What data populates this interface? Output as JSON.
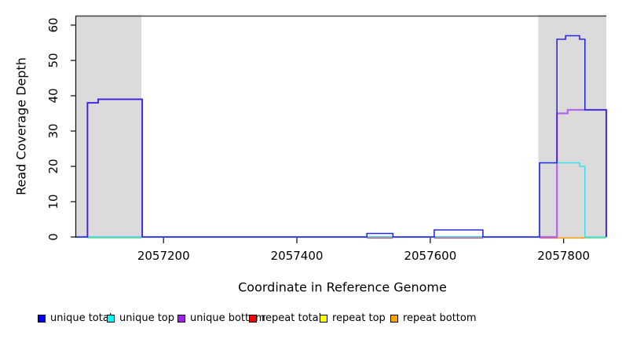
{
  "chart_data": {
    "type": "line",
    "subtype": "step-coverage",
    "title": "",
    "xlabel": "Coordinate in Reference Genome",
    "ylabel": "Read Coverage Depth",
    "xlim": [
      2057069,
      2057864
    ],
    "ylim": [
      0,
      62
    ],
    "xticks": [
      2057200,
      2057400,
      2057600,
      2057800
    ],
    "yticks": [
      0,
      10,
      20,
      30,
      40,
      50,
      60
    ],
    "grid": false,
    "legend_position": "bottom",
    "shaded_repeat_regions": [
      [
        2057069,
        2057167
      ],
      [
        2057762,
        2057864
      ]
    ],
    "shading_color": "#DBDBDB",
    "baseline_overlap_color": "#7668EA",
    "series": [
      {
        "name": "unique total",
        "legend_color": "#0000FF",
        "line_color": "#2929E0",
        "points": [
          [
            2057069,
            0
          ],
          [
            2057086,
            0
          ],
          [
            2057086,
            38
          ],
          [
            2057102,
            38
          ],
          [
            2057102,
            39
          ],
          [
            2057168,
            39
          ],
          [
            2057168,
            0
          ],
          [
            2057505,
            0
          ],
          [
            2057505,
            1
          ],
          [
            2057544,
            1
          ],
          [
            2057544,
            0
          ],
          [
            2057606,
            0
          ],
          [
            2057606,
            2
          ],
          [
            2057679,
            2
          ],
          [
            2057679,
            0
          ],
          [
            2057764,
            0
          ],
          [
            2057764,
            21
          ],
          [
            2057790,
            21
          ],
          [
            2057790,
            56
          ],
          [
            2057803,
            56
          ],
          [
            2057803,
            57
          ],
          [
            2057824,
            57
          ],
          [
            2057824,
            56
          ],
          [
            2057832,
            56
          ],
          [
            2057832,
            36
          ],
          [
            2057864,
            36
          ],
          [
            2057864,
            0
          ]
        ]
      },
      {
        "name": "unique top",
        "legend_color": "#00FFFF",
        "line_color": "#3CE1EA",
        "points": [
          [
            2057069,
            0
          ],
          [
            2057764,
            0
          ],
          [
            2057764,
            21
          ],
          [
            2057824,
            21
          ],
          [
            2057824,
            20
          ],
          [
            2057832,
            20
          ],
          [
            2057832,
            0
          ],
          [
            2057864,
            0
          ]
        ]
      },
      {
        "name": "unique bottom",
        "legend_color": "#A020F0",
        "line_color": "#B168E4",
        "points": [
          [
            2057069,
            0
          ],
          [
            2057086,
            0
          ],
          [
            2057086,
            38
          ],
          [
            2057102,
            38
          ],
          [
            2057102,
            39
          ],
          [
            2057168,
            39
          ],
          [
            2057168,
            0
          ],
          [
            2057790,
            0
          ],
          [
            2057790,
            35
          ],
          [
            2057806,
            35
          ],
          [
            2057806,
            36
          ],
          [
            2057864,
            36
          ],
          [
            2057864,
            0
          ]
        ]
      },
      {
        "name": "repeat total",
        "legend_color": "#FF0000",
        "line_color": "#E05454",
        "points": [
          [
            2057069,
            0
          ],
          [
            2057864,
            0
          ]
        ]
      },
      {
        "name": "repeat top",
        "legend_color": "#FFFF00",
        "line_color": "#FFFF00",
        "points": [
          [
            2057069,
            0
          ],
          [
            2057864,
            0
          ]
        ]
      },
      {
        "name": "repeat bottom",
        "legend_color": "#FFA500",
        "line_color": "#FFA01E",
        "points": [
          [
            2057069,
            0
          ],
          [
            2057864,
            0
          ]
        ]
      }
    ],
    "zero_line_segments": [
      {
        "series": "repeat total",
        "color": "#E05454",
        "range": [
          2057505,
          2057544
        ]
      },
      {
        "series": "repeat total",
        "color": "#E05454",
        "range": [
          2057606,
          2057679
        ]
      },
      {
        "series": "repeat total",
        "color": "#E87070",
        "range": [
          2057764,
          2057791
        ]
      },
      {
        "series": "repeat bottom",
        "color": "#FFA01E",
        "range": [
          2057791,
          2057833
        ]
      },
      {
        "series": "unique top + repeat top overlap",
        "color": "#92DA92",
        "range": [
          2057086,
          2057167
        ]
      },
      {
        "series": "unique top + repeat top overlap",
        "color": "#92DA92",
        "range": [
          2057833,
          2057864
        ]
      }
    ]
  },
  "legend": {
    "items": [
      {
        "label": "unique total",
        "color": "#0000FF"
      },
      {
        "label": "unique top",
        "color": "#00FFFF"
      },
      {
        "label": "unique bottom",
        "color": "#A020F0"
      },
      {
        "label": "repeat total",
        "color": "#FF0000"
      },
      {
        "label": "repeat top",
        "color": "#FFFF00"
      },
      {
        "label": "repeat bottom",
        "color": "#FFA500"
      }
    ]
  }
}
